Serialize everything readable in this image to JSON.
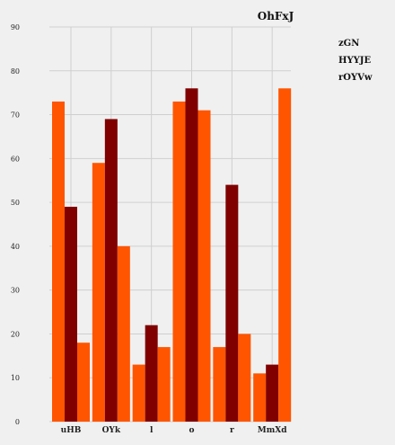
{
  "chart_data": {
    "type": "bar",
    "title": "OhFxJ",
    "xlabel": "",
    "ylabel": "",
    "categories": [
      "uHB",
      "OYk",
      "l",
      "o",
      "r",
      "MmXd"
    ],
    "series": [
      {
        "name": "zGN",
        "values": [
          73,
          59,
          13,
          73,
          17,
          11
        ],
        "color": "#ff5500"
      },
      {
        "name": "HYYJE",
        "values": [
          49,
          69,
          22,
          76,
          54,
          13
        ],
        "color": "#800000"
      },
      {
        "name": "rOYVw",
        "values": [
          18,
          40,
          17,
          71,
          20,
          76
        ],
        "color": "#ff5500"
      }
    ],
    "ylim": [
      0,
      90
    ],
    "yticks": [
      0,
      10,
      20,
      30,
      40,
      50,
      60,
      70,
      80,
      90
    ],
    "grid": true,
    "legend_position": "top-right"
  }
}
